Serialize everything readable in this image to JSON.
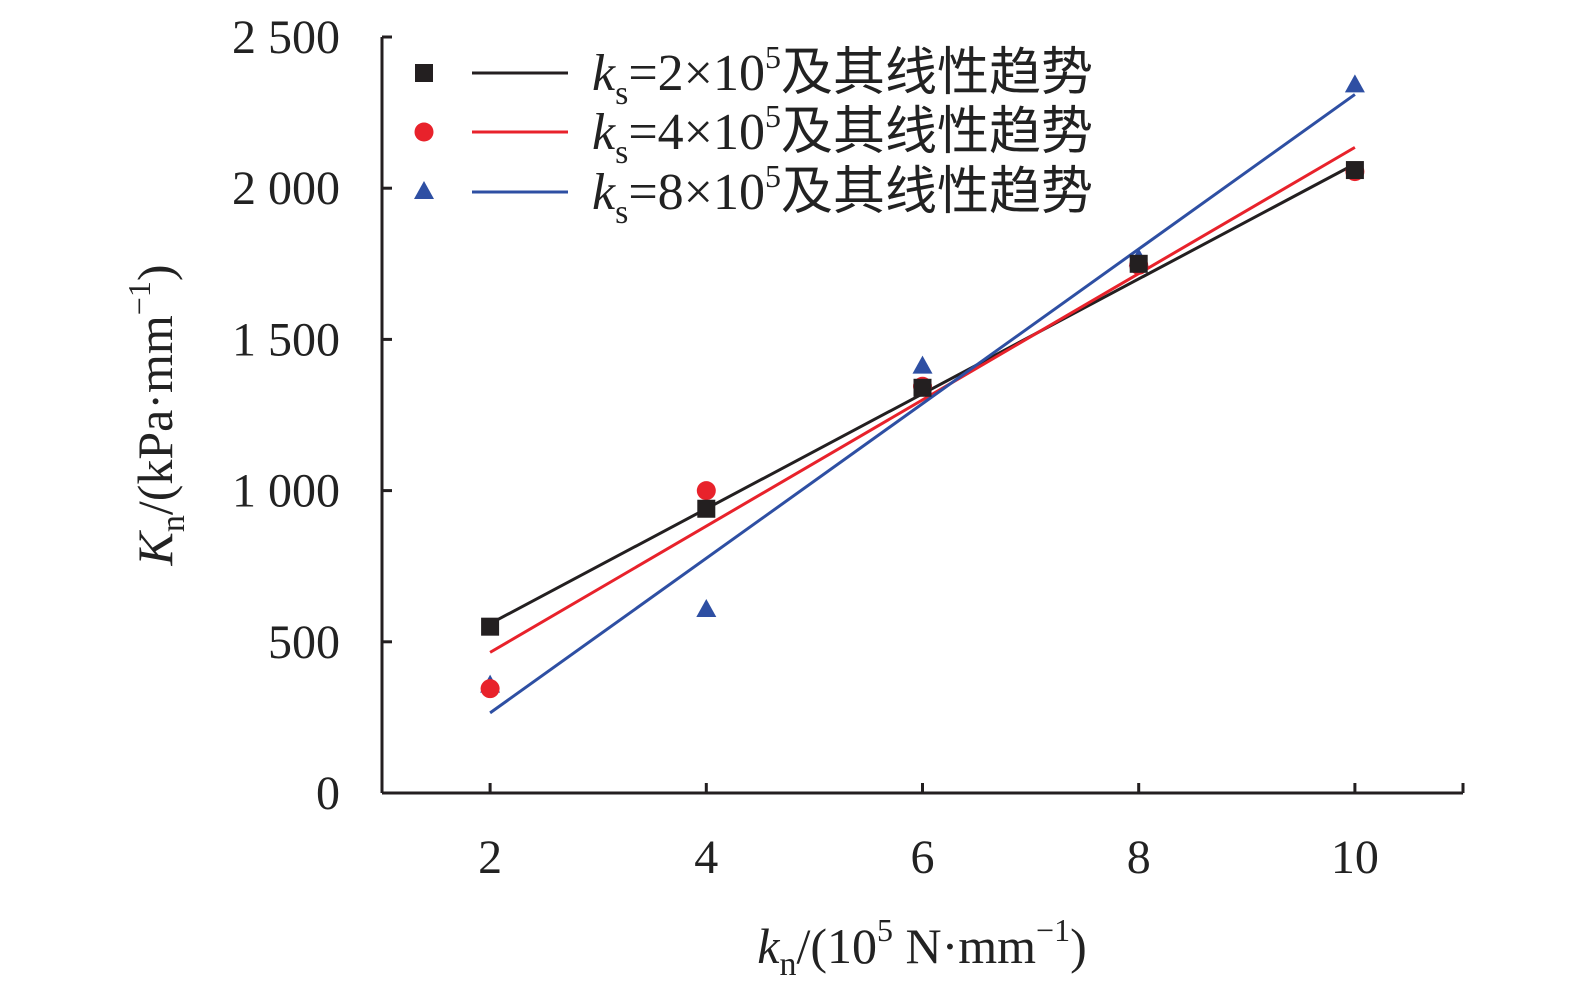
{
  "chart_data": {
    "type": "scatter",
    "title": "",
    "xlabel": {
      "symbol": "k",
      "subscript": "n",
      "prefix": "/(10",
      "exp": "5",
      "unit": " N·mm",
      "unit_exp": "−1",
      "suffix": ")"
    },
    "ylabel": {
      "symbol": "K",
      "subscript": "n",
      "unit": "/(kPa·mm",
      "unit_exp": "−1",
      "suffix": ")"
    },
    "x_ticks": [
      "2",
      "4",
      "6",
      "8",
      "10"
    ],
    "y_ticks": [
      "0",
      "500",
      "1 000",
      "1 500",
      "2 000",
      "2 500"
    ],
    "xlim": [
      1,
      11
    ],
    "ylim": [
      0,
      2500
    ],
    "x": [
      2,
      4,
      6,
      8,
      10
    ],
    "grid": false,
    "legend_position": "top",
    "series": [
      {
        "name": "ks=2×10^5及其线性趋势",
        "legend": {
          "symbol": "k",
          "subscript": "s",
          "base": "=2×10",
          "exp": "5",
          "text": "及其线性趋势"
        },
        "marker": "square",
        "color": "#231f20",
        "values": [
          550,
          940,
          1340,
          1750,
          2060
        ],
        "trend": {
          "from": [
            2,
            560
          ],
          "to": [
            10,
            2080
          ]
        }
      },
      {
        "name": "ks=4×10^5及其线性趋势",
        "legend": {
          "symbol": "k",
          "subscript": "s",
          "base": "=4×10",
          "exp": "5",
          "text": "及其线性趋势"
        },
        "marker": "circle",
        "color": "#e8222b",
        "values": [
          345,
          1000,
          1345,
          1745,
          2055
        ],
        "trend": {
          "from": [
            2,
            465
          ],
          "to": [
            10,
            2135
          ]
        }
      },
      {
        "name": "ks=8×10^5及其线性趋势",
        "legend": {
          "symbol": "k",
          "subscript": "s",
          "base": "=8×10",
          "exp": "5",
          "text": "及其线性趋势"
        },
        "marker": "triangle",
        "color": "#2e4fa3",
        "values": [
          355,
          605,
          1410,
          1765,
          2340
        ],
        "trend": {
          "from": [
            2,
            265
          ],
          "to": [
            10,
            2310
          ]
        }
      }
    ]
  }
}
